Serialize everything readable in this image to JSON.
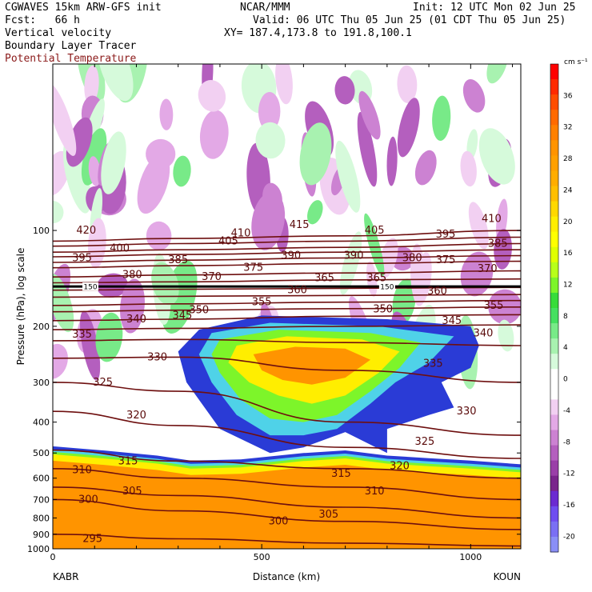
{
  "header": {
    "model": "CGWAVES 15km ARW-GFS init",
    "org": "NCAR/MMM",
    "init": "Init: 12 UTC Mon 02 Jun 25",
    "fcst": "Fcst:   66 h",
    "valid": "Valid: 06 UTC Thu 05 Jun 25 (01 CDT Thu 05 Jun 25)",
    "field1": "Vertical velocity",
    "field2": "Boundary Layer Tracer",
    "field3": "Potential Temperature",
    "xy": "XY= 187.4,173.8 to 191.8,100.1"
  },
  "colors": {
    "theta": "#6e0f0f",
    "text_red": "#8b1a1a"
  },
  "chart_data": {
    "type": "heatmap",
    "xlabel": "Distance (km)",
    "ylabel": "Pressure (hPa), log scale",
    "y_scale": "log",
    "xlim": [
      0,
      1120
    ],
    "ylim": [
      1000,
      30
    ],
    "x_ticks": [
      0,
      500,
      1000
    ],
    "y_ticks": [
      100,
      200,
      300,
      400,
      500,
      600,
      700,
      800,
      900,
      1000
    ],
    "left_endpoint": "KABR",
    "right_endpoint": "KOUN",
    "tropopause_label": "150",
    "tropopause_pressure": 150,
    "colorbar": {
      "unit": "cm s⁻¹",
      "min": -22,
      "max": 40,
      "step": 2,
      "labels": [
        "36",
        "32",
        "28",
        "24",
        "20",
        "16",
        "12",
        "8",
        "4",
        "0",
        "-4",
        "-8",
        "-12",
        "-16",
        "-20"
      ],
      "colors": [
        "#ff0000",
        "#ff2a00",
        "#ff4d00",
        "#ff6a00",
        "#ff8000",
        "#ff9400",
        "#ffa000",
        "#ffad00",
        "#ffbf00",
        "#ffd800",
        "#ffee00",
        "#ffff00",
        "#e0ff00",
        "#b8ff1a",
        "#7df52a",
        "#37dc3a",
        "#45e060",
        "#78ea88",
        "#a8f2b0",
        "#d6fadb",
        "#ffffff",
        "#ffffff",
        "#f2d0f2",
        "#e3a9e6",
        "#cc82d2",
        "#b45fbe",
        "#9a3fa8",
        "#7a258c",
        "#6b2bd1",
        "#6f4df0",
        "#7a6ff4",
        "#8a8ff6"
      ]
    },
    "theta_contours": [
      {
        "label": "420",
        "points": [
          [
            0,
            108
          ],
          [
            300,
            106
          ],
          [
            700,
            104
          ],
          [
            1120,
            100
          ]
        ]
      },
      {
        "label": "410",
        "points": [
          [
            0,
            112
          ],
          [
            300,
            110
          ],
          [
            700,
            108
          ],
          [
            1120,
            105
          ]
        ]
      },
      {
        "label": "400",
        "points": [
          [
            0,
            117
          ],
          [
            300,
            115
          ],
          [
            700,
            113
          ],
          [
            1120,
            110
          ]
        ]
      },
      {
        "label": "395",
        "points": [
          [
            0,
            121
          ],
          [
            300,
            119
          ],
          [
            700,
            117
          ],
          [
            1120,
            115
          ]
        ]
      },
      {
        "label": "390",
        "points": [
          [
            0,
            126
          ],
          [
            300,
            124
          ],
          [
            700,
            122
          ],
          [
            1120,
            120
          ]
        ]
      },
      {
        "label": "385",
        "points": [
          [
            0,
            131
          ],
          [
            300,
            129
          ],
          [
            700,
            127
          ],
          [
            1120,
            125
          ]
        ]
      },
      {
        "label": "375",
        "points": [
          [
            0,
            140
          ],
          [
            300,
            138
          ],
          [
            700,
            136
          ],
          [
            1120,
            134
          ]
        ]
      },
      {
        "label": "370",
        "points": [
          [
            0,
            146
          ],
          [
            300,
            145
          ],
          [
            700,
            143
          ],
          [
            1120,
            142
          ]
        ]
      },
      {
        "label": "365",
        "points": [
          [
            0,
            154
          ],
          [
            300,
            153
          ],
          [
            700,
            152
          ],
          [
            1120,
            151
          ]
        ]
      },
      {
        "label": "360",
        "points": [
          [
            0,
            162
          ],
          [
            300,
            161
          ],
          [
            700,
            160
          ],
          [
            1120,
            159
          ]
        ]
      },
      {
        "label": "355",
        "points": [
          [
            0,
            172
          ],
          [
            300,
            170
          ],
          [
            700,
            168
          ],
          [
            1120,
            166
          ]
        ]
      },
      {
        "label": "350",
        "points": [
          [
            0,
            180
          ],
          [
            300,
            178
          ],
          [
            700,
            176
          ],
          [
            1120,
            174
          ]
        ]
      },
      {
        "label": "345",
        "points": [
          [
            0,
            192
          ],
          [
            300,
            190
          ],
          [
            700,
            186
          ],
          [
            1120,
            184
          ]
        ]
      },
      {
        "label": "340",
        "points": [
          [
            0,
            205
          ],
          [
            300,
            203
          ],
          [
            700,
            200
          ],
          [
            1120,
            198
          ]
        ]
      },
      {
        "label": "335",
        "points": [
          [
            0,
            222
          ],
          [
            300,
            220
          ],
          [
            700,
            225
          ],
          [
            1120,
            230
          ]
        ]
      },
      {
        "label": "330",
        "points": [
          [
            0,
            252
          ],
          [
            300,
            250
          ],
          [
            700,
            275
          ],
          [
            1120,
            300
          ]
        ]
      },
      {
        "label": "325",
        "points": [
          [
            0,
            300
          ],
          [
            300,
            320
          ],
          [
            700,
            400
          ],
          [
            1120,
            440
          ]
        ]
      },
      {
        "label": "320",
        "points": [
          [
            0,
            370
          ],
          [
            300,
            410
          ],
          [
            700,
            480
          ],
          [
            1120,
            520
          ]
        ]
      },
      {
        "label": "315",
        "points": [
          [
            0,
            490
          ],
          [
            300,
            530
          ],
          [
            700,
            560
          ],
          [
            1120,
            600
          ]
        ]
      },
      {
        "label": "310",
        "points": [
          [
            0,
            560
          ],
          [
            300,
            600
          ],
          [
            700,
            640
          ],
          [
            1120,
            700
          ]
        ]
      },
      {
        "label": "305",
        "points": [
          [
            0,
            640
          ],
          [
            300,
            680
          ],
          [
            700,
            740
          ],
          [
            1120,
            800
          ]
        ]
      },
      {
        "label": "300",
        "points": [
          [
            0,
            700
          ],
          [
            300,
            760
          ],
          [
            700,
            820
          ],
          [
            1120,
            870
          ]
        ]
      },
      {
        "label": "295",
        "points": [
          [
            0,
            900
          ],
          [
            300,
            930
          ],
          [
            700,
            960
          ],
          [
            1120,
            980
          ]
        ]
      }
    ],
    "theta_labels": [
      {
        "text": "420",
        "x": 80,
        "p": 100
      },
      {
        "text": "410",
        "x": 450,
        "p": 102
      },
      {
        "text": "415",
        "x": 590,
        "p": 96
      },
      {
        "text": "405",
        "x": 420,
        "p": 108
      },
      {
        "text": "405",
        "x": 770,
        "p": 100
      },
      {
        "text": "395",
        "x": 940,
        "p": 103
      },
      {
        "text": "410",
        "x": 1050,
        "p": 92
      },
      {
        "text": "400",
        "x": 160,
        "p": 114
      },
      {
        "text": "385",
        "x": 1065,
        "p": 110
      },
      {
        "text": "395",
        "x": 70,
        "p": 122
      },
      {
        "text": "390",
        "x": 570,
        "p": 120
      },
      {
        "text": "390",
        "x": 720,
        "p": 120
      },
      {
        "text": "380",
        "x": 860,
        "p": 122
      },
      {
        "text": "385",
        "x": 300,
        "p": 124
      },
      {
        "text": "375",
        "x": 940,
        "p": 124
      },
      {
        "text": "375",
        "x": 480,
        "p": 131
      },
      {
        "text": "370",
        "x": 1040,
        "p": 132
      },
      {
        "text": "380",
        "x": 190,
        "p": 138
      },
      {
        "text": "370",
        "x": 380,
        "p": 140
      },
      {
        "text": "365",
        "x": 650,
        "p": 141
      },
      {
        "text": "365",
        "x": 775,
        "p": 141
      },
      {
        "text": "360",
        "x": 585,
        "p": 154
      },
      {
        "text": "360",
        "x": 920,
        "p": 155
      },
      {
        "text": "350",
        "x": 350,
        "p": 178
      },
      {
        "text": "355",
        "x": 500,
        "p": 168
      },
      {
        "text": "355",
        "x": 1055,
        "p": 172
      },
      {
        "text": "350",
        "x": 790,
        "p": 177
      },
      {
        "text": "345",
        "x": 310,
        "p": 185
      },
      {
        "text": "345",
        "x": 955,
        "p": 192
      },
      {
        "text": "340",
        "x": 200,
        "p": 190
      },
      {
        "text": "340",
        "x": 1030,
        "p": 210
      },
      {
        "text": "335",
        "x": 70,
        "p": 212
      },
      {
        "text": "335",
        "x": 910,
        "p": 262
      },
      {
        "text": "330",
        "x": 250,
        "p": 250
      },
      {
        "text": "330",
        "x": 990,
        "p": 370
      },
      {
        "text": "325",
        "x": 120,
        "p": 300
      },
      {
        "text": "325",
        "x": 890,
        "p": 460
      },
      {
        "text": "320",
        "x": 200,
        "p": 380
      },
      {
        "text": "320",
        "x": 830,
        "p": 550
      },
      {
        "text": "315",
        "x": 180,
        "p": 530
      },
      {
        "text": "315",
        "x": 690,
        "p": 580
      },
      {
        "text": "310",
        "x": 70,
        "p": 565
      },
      {
        "text": "310",
        "x": 770,
        "p": 660
      },
      {
        "text": "305",
        "x": 190,
        "p": 660
      },
      {
        "text": "305",
        "x": 660,
        "p": 780
      },
      {
        "text": "300",
        "x": 85,
        "p": 700
      },
      {
        "text": "300",
        "x": 540,
        "p": 820
      },
      {
        "text": "295",
        "x": 95,
        "p": 930
      }
    ],
    "updraft_regions": [
      {
        "level": "blue",
        "points": [
          [
            350,
            205
          ],
          [
            500,
            185
          ],
          [
            800,
            190
          ],
          [
            1000,
            200
          ],
          [
            1020,
            230
          ],
          [
            1000,
            270
          ],
          [
            930,
            300
          ],
          [
            960,
            360
          ],
          [
            900,
            380
          ],
          [
            800,
            420
          ],
          [
            800,
            500
          ],
          [
            700,
            430
          ],
          [
            600,
            480
          ],
          [
            520,
            500
          ],
          [
            400,
            420
          ],
          [
            320,
            300
          ],
          [
            300,
            240
          ]
        ]
      },
      {
        "level": "cyan",
        "points": [
          [
            380,
            210
          ],
          [
            520,
            195
          ],
          [
            780,
            200
          ],
          [
            960,
            215
          ],
          [
            900,
            260
          ],
          [
            820,
            300
          ],
          [
            760,
            350
          ],
          [
            680,
            420
          ],
          [
            600,
            440
          ],
          [
            520,
            440
          ],
          [
            440,
            380
          ],
          [
            380,
            300
          ],
          [
            350,
            245
          ]
        ]
      },
      {
        "level": "green",
        "points": [
          [
            400,
            220
          ],
          [
            540,
            205
          ],
          [
            760,
            210
          ],
          [
            880,
            225
          ],
          [
            830,
            270
          ],
          [
            760,
            320
          ],
          [
            680,
            380
          ],
          [
            600,
            400
          ],
          [
            520,
            390
          ],
          [
            450,
            340
          ],
          [
            400,
            280
          ],
          [
            380,
            245
          ]
        ]
      },
      {
        "level": "yellow",
        "points": [
          [
            440,
            230
          ],
          [
            560,
            215
          ],
          [
            740,
            220
          ],
          [
            830,
            240
          ],
          [
            780,
            280
          ],
          [
            700,
            330
          ],
          [
            620,
            350
          ],
          [
            540,
            330
          ],
          [
            470,
            300
          ],
          [
            420,
            260
          ]
        ]
      },
      {
        "level": "orange",
        "points": [
          [
            480,
            245
          ],
          [
            580,
            232
          ],
          [
            700,
            235
          ],
          [
            760,
            255
          ],
          [
            700,
            290
          ],
          [
            620,
            305
          ],
          [
            550,
            295
          ],
          [
            500,
            275
          ]
        ]
      }
    ],
    "boundary_layer_pbl_top": [
      {
        "x": 0,
        "p": 505
      },
      {
        "x": 120,
        "p": 520
      },
      {
        "x": 250,
        "p": 540
      },
      {
        "x": 330,
        "p": 560
      },
      {
        "x": 450,
        "p": 555
      },
      {
        "x": 600,
        "p": 530
      },
      {
        "x": 700,
        "p": 520
      },
      {
        "x": 800,
        "p": 540
      },
      {
        "x": 900,
        "p": 550
      },
      {
        "x": 1000,
        "p": 560
      },
      {
        "x": 1120,
        "p": 575
      }
    ]
  }
}
